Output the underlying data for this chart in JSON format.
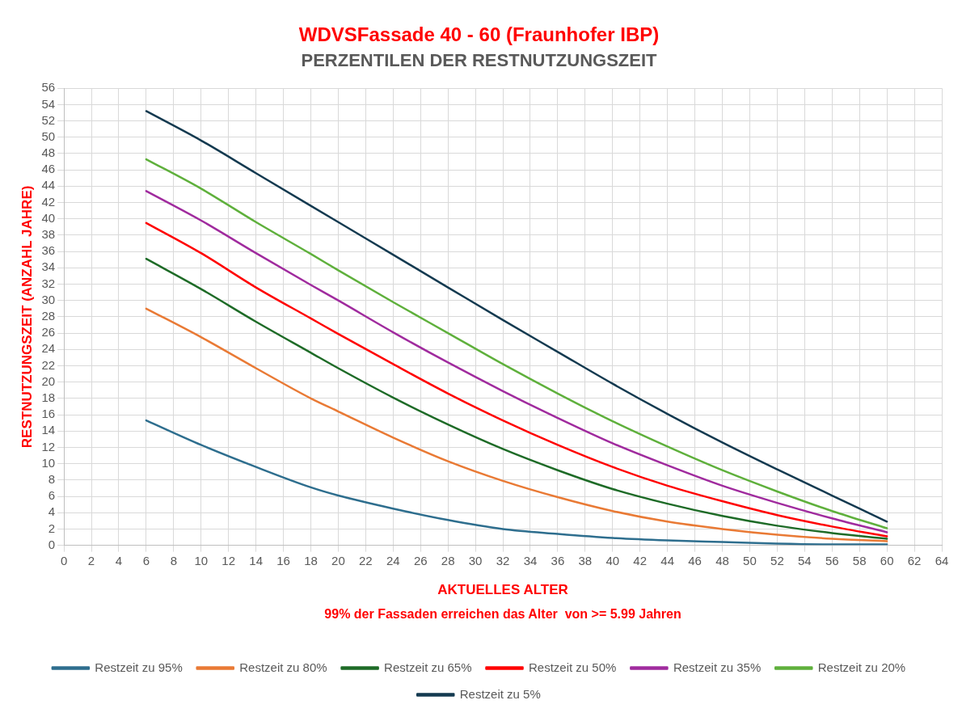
{
  "chart_data": {
    "type": "line",
    "title": "WDVSFassade 40 - 60 (Fraunhofer IBP)",
    "subtitle": "PERZENTILEN DER RESTNUTZUNGSZEIT",
    "xlabel": "AKTUELLES ALTER",
    "ylabel": "RESTNUTZUNGSZEIT (ANZAHL JAHRE)",
    "annotations": [
      "99% der Fassaden erreichen das Alter  von >= 5.99 Jahren"
    ],
    "x": [
      6,
      10,
      14,
      18,
      20,
      24,
      28,
      32,
      36,
      40,
      44,
      48,
      52,
      56,
      60
    ],
    "series": [
      {
        "name": "Restzeit zu 95%",
        "color": "#2e6e8e",
        "values": [
          15.3,
          12.3,
          9.6,
          7.1,
          6.1,
          4.5,
          3.1,
          2.0,
          1.4,
          0.9,
          0.6,
          0.4,
          0.2,
          0.1,
          0.1
        ]
      },
      {
        "name": "Restzeit zu 80%",
        "color": "#e97a35",
        "values": [
          29,
          25.5,
          21.7,
          18,
          16.4,
          13.2,
          10.3,
          7.9,
          5.9,
          4.2,
          2.9,
          2.0,
          1.3,
          0.8,
          0.5
        ]
      },
      {
        "name": "Restzeit zu 65%",
        "color": "#1e6b27",
        "values": [
          35.1,
          31.4,
          27.4,
          23.6,
          21.7,
          18.1,
          14.8,
          11.8,
          9.2,
          6.9,
          5.1,
          3.6,
          2.4,
          1.5,
          0.8
        ]
      },
      {
        "name": "Restzeit zu 50%",
        "color": "#ff0000",
        "values": [
          39.5,
          35.8,
          31.6,
          27.8,
          25.9,
          22.2,
          18.6,
          15.3,
          12.3,
          9.6,
          7.3,
          5.4,
          3.7,
          2.3,
          1.1
        ]
      },
      {
        "name": "Restzeit zu 35%",
        "color": "#a02b9e",
        "values": [
          43.4,
          39.8,
          35.8,
          31.9,
          30,
          26.1,
          22.4,
          18.9,
          15.6,
          12.5,
          9.8,
          7.3,
          5.2,
          3.3,
          1.6
        ]
      },
      {
        "name": "Restzeit zu 20%",
        "color": "#5fb03c",
        "values": [
          47.3,
          43.7,
          39.6,
          35.7,
          33.7,
          29.8,
          26,
          22.2,
          18.6,
          15.2,
          12.1,
          9.2,
          6.6,
          4.2,
          2.1
        ]
      },
      {
        "name": "Restzeit zu 5%",
        "color": "#143a50",
        "values": [
          53.2,
          49.6,
          45.6,
          41.6,
          39.6,
          35.6,
          31.6,
          27.6,
          23.7,
          19.8,
          16.1,
          12.6,
          9.3,
          6.1,
          2.9
        ]
      }
    ],
    "xlim": [
      0,
      64
    ],
    "xticks": [
      0,
      2,
      4,
      6,
      8,
      10,
      12,
      14,
      16,
      18,
      20,
      22,
      24,
      26,
      28,
      30,
      32,
      34,
      36,
      38,
      40,
      42,
      44,
      46,
      48,
      50,
      52,
      54,
      56,
      58,
      60,
      62,
      64
    ],
    "ylim": [
      0,
      56
    ],
    "yticks": [
      0,
      2,
      4,
      6,
      8,
      10,
      12,
      14,
      16,
      18,
      20,
      22,
      24,
      26,
      28,
      30,
      32,
      34,
      36,
      38,
      40,
      42,
      44,
      46,
      48,
      50,
      52,
      54,
      56
    ],
    "grid": true,
    "legend": "bottom",
    "marker": "none",
    "line_style": "solid"
  }
}
